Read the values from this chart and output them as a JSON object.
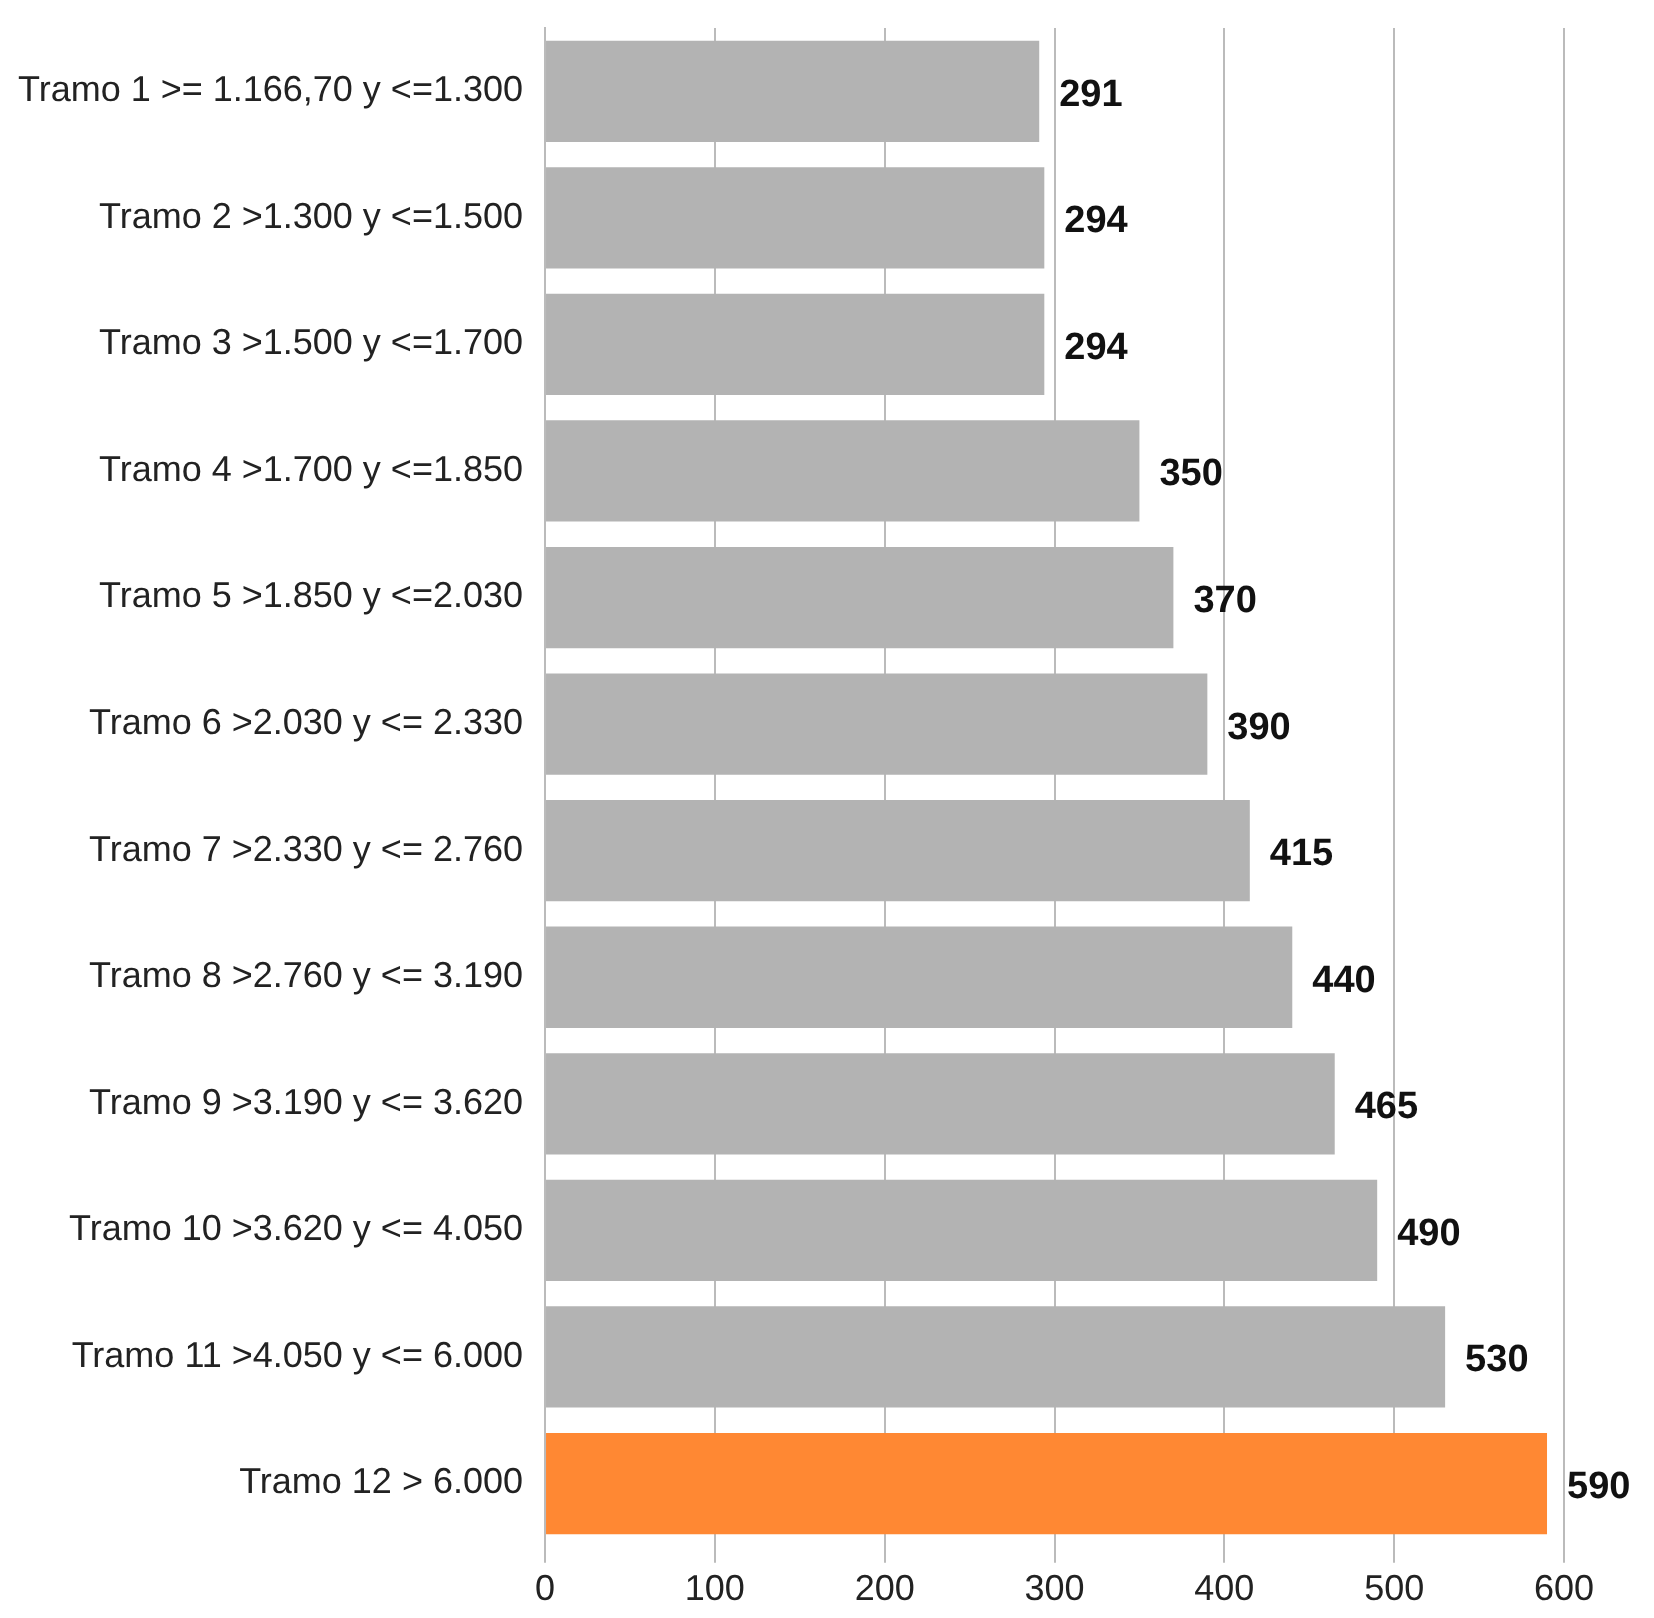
{
  "chart_data": {
    "type": "bar",
    "orientation": "horizontal",
    "categories": [
      "Tramo 1 >= 1.166,70 y <=1.300",
      "Tramo 2 >1.300 y <=1.500",
      "Tramo 3 >1.500 y <=1.700",
      "Tramo 4 >1.700 y <=1.850",
      "Tramo 5 >1.850 y <=2.030",
      "Tramo 6 >2.030 y <= 2.330",
      "Tramo 7 >2.330 y <= 2.760",
      "Tramo 8 >2.760 y <= 3.190",
      "Tramo 9 >3.190 y <= 3.620",
      "Tramo 10 >3.620 y <= 4.050",
      "Tramo 11 >4.050 y <= 6.000",
      "Tramo 12 > 6.000"
    ],
    "values": [
      291,
      294,
      294,
      350,
      370,
      390,
      415,
      440,
      465,
      490,
      530,
      590
    ],
    "colors": [
      "#b3b3b3",
      "#b3b3b3",
      "#b3b3b3",
      "#b3b3b3",
      "#b3b3b3",
      "#b3b3b3",
      "#b3b3b3",
      "#b3b3b3",
      "#b3b3b3",
      "#b3b3b3",
      "#b3b3b3",
      "#ff8833"
    ],
    "xlim": [
      0,
      600
    ],
    "xticks": [
      0,
      100,
      200,
      300,
      400,
      500,
      600
    ],
    "grid": "x",
    "data_labels": true
  }
}
